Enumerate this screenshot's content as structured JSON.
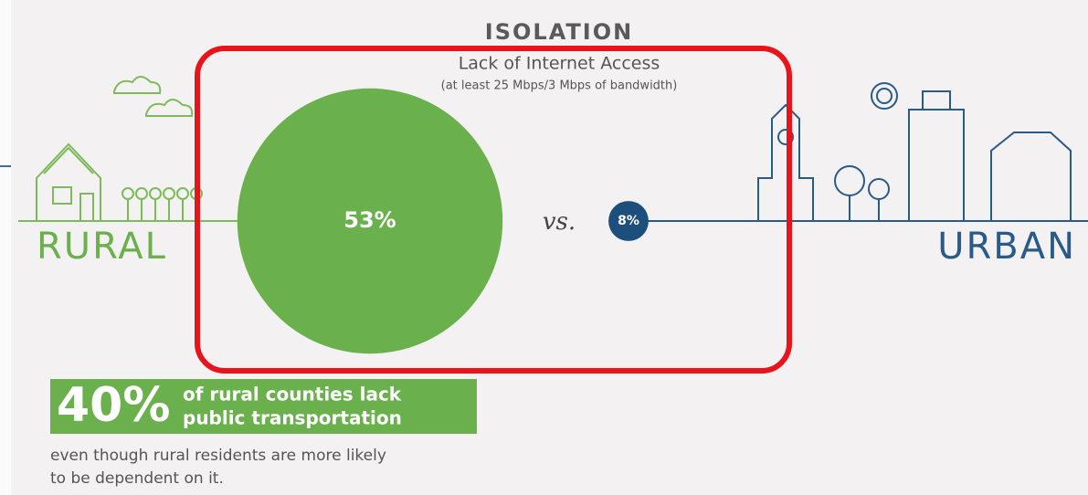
{
  "header": {
    "title": "ISOLATION",
    "subtitle": "Lack of Internet Access",
    "note": "(at least 25 Mbps/3 Mbps of bandwidth)"
  },
  "comparison": {
    "rural": {
      "value": 53,
      "label": "53%"
    },
    "separator": "vs.",
    "urban": {
      "value": 8,
      "label": "8%"
    }
  },
  "labels": {
    "rural": "RURAL",
    "urban": "URBAN"
  },
  "callout": {
    "figure": "40%",
    "lines": [
      "of rural counties lack",
      "public transportation"
    ]
  },
  "body": [
    "even though rural residents are more likely",
    "to be dependent on it."
  ]
}
